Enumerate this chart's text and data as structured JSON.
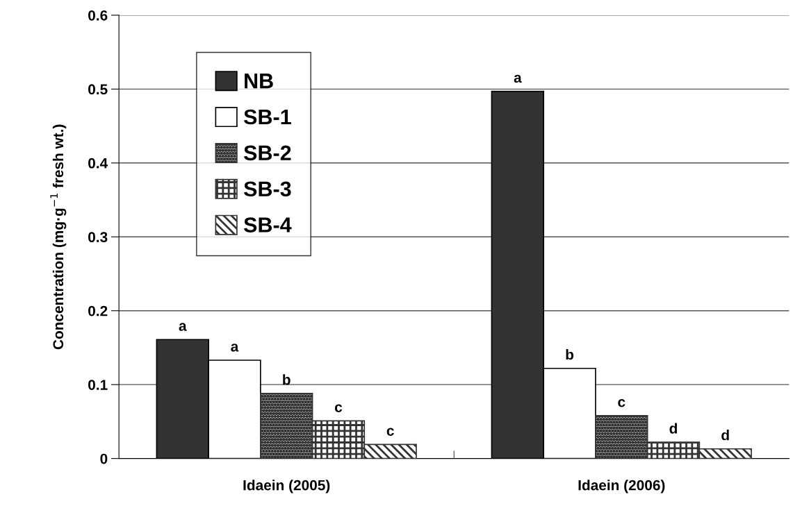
{
  "chart_data": {
    "type": "bar",
    "ylabel": "Concentration (mg·g$^{−1}$ fresh wt.)",
    "categories": [
      "Idaein (2005)",
      "Idaein (2006)"
    ],
    "series": [
      {
        "name": "NB",
        "color": "#333333",
        "values": [
          0.161,
          0.497
        ],
        "value_labels": [
          "a",
          "a"
        ]
      },
      {
        "name": "SB-1",
        "color": "#ffffff",
        "values": [
          0.133,
          0.122
        ],
        "value_labels": [
          "a",
          "b"
        ]
      },
      {
        "name": "SB-2",
        "color": "#333333",
        "values": [
          0.088,
          0.058
        ],
        "value_labels": [
          "b",
          "c"
        ]
      },
      {
        "name": "SB-3",
        "color": "#333333",
        "values": [
          0.051,
          0.022
        ],
        "value_labels": [
          "c",
          "d"
        ]
      },
      {
        "name": "SB-4",
        "color": "#333333",
        "values": [
          0.019,
          0.013
        ],
        "value_labels": [
          "c",
          "d"
        ]
      }
    ],
    "ylim": [
      0,
      0.6
    ],
    "yticks": [
      0,
      0.1,
      0.2,
      0.3,
      0.4,
      0.5,
      0.6
    ],
    "grid": "y",
    "legend": "top left"
  }
}
